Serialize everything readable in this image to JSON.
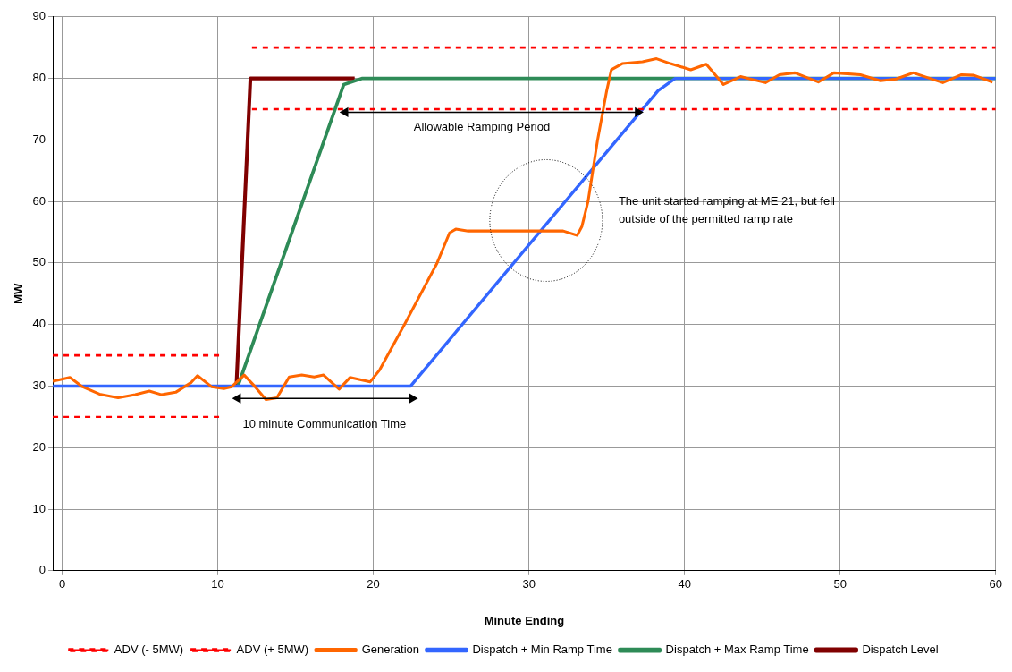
{
  "chart_data": {
    "type": "line",
    "xlabel": "Minute Ending",
    "ylabel": "MW",
    "xlim": [
      -0.6,
      60
    ],
    "ylim": [
      0,
      90
    ],
    "xticks": [
      0,
      10,
      20,
      30,
      40,
      50,
      60
    ],
    "yticks": [
      0,
      10,
      20,
      30,
      40,
      50,
      60,
      70,
      80,
      90
    ],
    "grid": true,
    "legend": "bottom",
    "marker": "none",
    "line_style": "solid",
    "series": [
      {
        "name": "Dispatch Level",
        "color": "#800000",
        "x": [
          11.2,
          12.1,
          18.8
        ],
        "values": [
          30,
          80,
          80
        ]
      },
      {
        "name": "Dispatch + Max Ramp Time",
        "color": "#2e8b57",
        "x": [
          11.3,
          18.1,
          19.3,
          60
        ],
        "values": [
          30,
          79,
          80,
          80
        ]
      },
      {
        "name": "Dispatch + Min Ramp Time",
        "color": "#3366ff",
        "x": [
          -0.6,
          22.4,
          38.3,
          39.4,
          60
        ],
        "values": [
          30,
          30,
          78,
          80,
          80
        ]
      },
      {
        "name": "Generation",
        "color": "#ff6600",
        "x": [
          -0.6,
          0.5,
          1.3,
          2.4,
          3.6,
          4.7,
          5.6,
          6.4,
          7.3,
          8.3,
          8.7,
          9.6,
          10.4,
          10.9,
          11.7,
          12.4,
          13.1,
          13.8,
          14.6,
          15.4,
          16.2,
          16.8,
          17.8,
          18.5,
          19.8,
          20.4,
          22,
          24.1,
          24.9,
          25.3,
          26.1,
          32.2,
          33.1,
          33.4,
          33.8,
          34.4,
          35,
          35.3,
          36,
          37.3,
          38.2,
          39.1,
          40.4,
          41.4,
          42.5,
          43.6,
          45.2,
          46.1,
          47.1,
          48.6,
          49.6,
          51.3,
          52.6,
          53.6,
          54.7,
          56.6,
          57.8,
          58.6,
          59.8
        ],
        "values": [
          30.8,
          31.4,
          29.9,
          28.7,
          28.1,
          28.6,
          29.2,
          28.6,
          29,
          30.6,
          31.7,
          29.9,
          29.6,
          29.9,
          31.8,
          29.9,
          27.8,
          28.1,
          31.5,
          31.8,
          31.5,
          31.8,
          29.5,
          31.4,
          30.7,
          32.6,
          40,
          50,
          54.9,
          55.5,
          55.2,
          55.2,
          54.5,
          55.9,
          60,
          69.8,
          78,
          81.4,
          82.4,
          82.7,
          83.2,
          82.4,
          81.4,
          82.3,
          79,
          80.3,
          79.3,
          80.6,
          80.9,
          79.4,
          80.9,
          80.6,
          79.6,
          79.9,
          80.9,
          79.3,
          80.6,
          80.5,
          79.4
        ]
      },
      {
        "name": "ADV (+ 5MW)",
        "color": "#ff0000",
        "line_style": "dashed",
        "x": [
          -0.6,
          10.4,
          11.3,
          12.2,
          60
        ],
        "values": [
          35,
          35,
          null,
          85,
          85
        ]
      },
      {
        "name": "ADV (- 5MW)",
        "color": "#ff0000",
        "line_style": "dashed",
        "x": [
          -0.6,
          10.4,
          11.3,
          12.2,
          60
        ],
        "values": [
          25,
          25,
          null,
          75,
          75
        ]
      },
      {
        "color": "#000000",
        "marker": "triangle",
        "x": [
          18.2,
          37
        ],
        "values": [
          74.5,
          74.5
        ]
      },
      {
        "color": "#000000",
        "marker": "triangle",
        "x": [
          11.3,
          22.5
        ],
        "values": [
          28,
          28
        ]
      }
    ],
    "annotations": [
      "Allowable Ramping Period",
      "10 minute Communication Time",
      "The unit started ramping at ME 21, but fell outside of the permitted ramp rate"
    ]
  }
}
